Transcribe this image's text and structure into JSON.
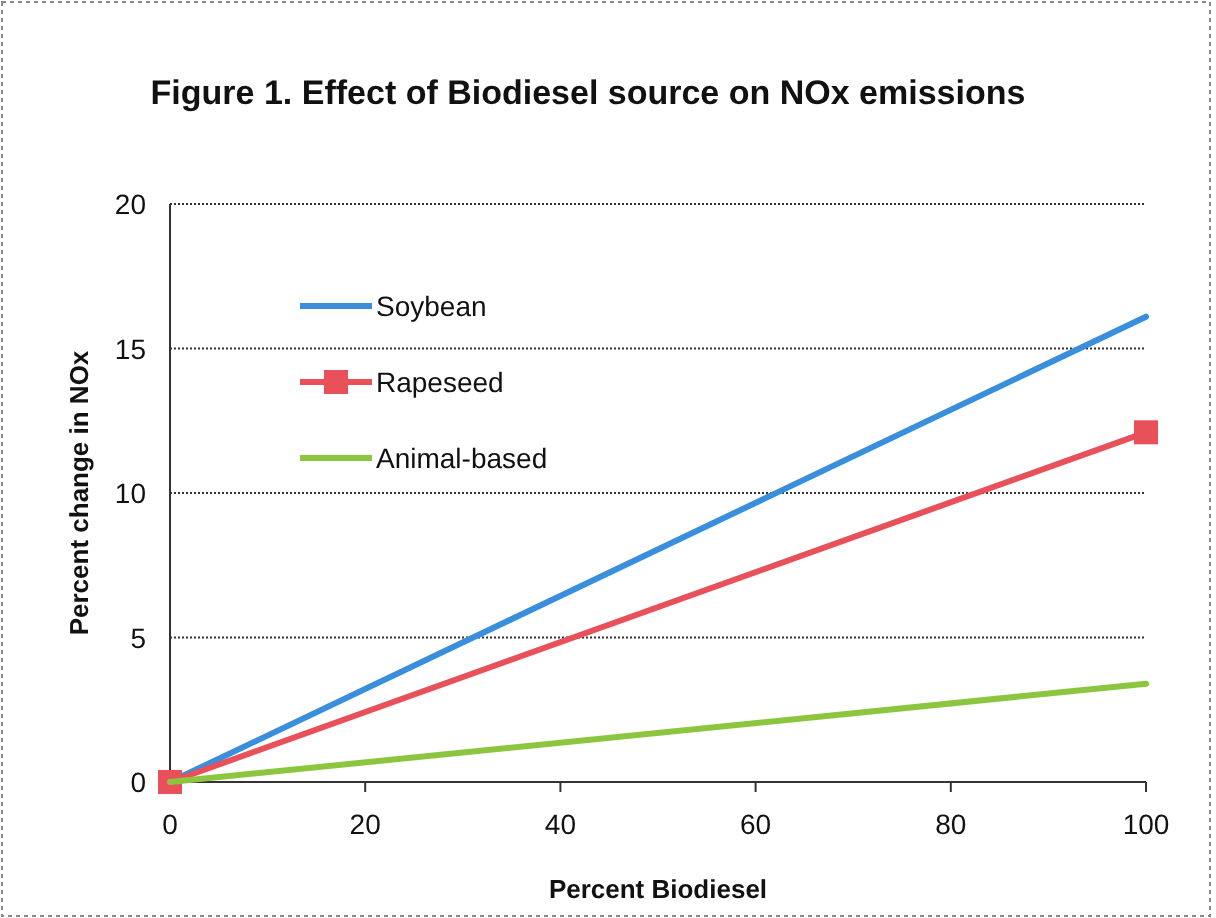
{
  "chart_data": {
    "type": "line",
    "title": "Figure 1. Effect of Biodiesel source on NOx emissions",
    "xlabel": "Percent Biodiesel",
    "ylabel": "Percent change in NOx",
    "x": [
      0,
      100
    ],
    "xlim": [
      0,
      100
    ],
    "ylim": [
      0,
      20
    ],
    "xticks": [
      0,
      20,
      40,
      60,
      80,
      100
    ],
    "yticks": [
      0,
      5,
      10,
      15,
      20
    ],
    "grid": "y",
    "legend": "top left",
    "series": [
      {
        "name": "Soybean",
        "color": "#3a8fdc",
        "values": [
          0,
          16.1
        ],
        "marker": "none"
      },
      {
        "name": "Rapeseed",
        "color": "#e8505a",
        "values": [
          0,
          12.1
        ],
        "marker": "square"
      },
      {
        "name": "Animal-based",
        "color": "#8cc63f",
        "values": [
          0,
          3.4
        ],
        "marker": "none"
      }
    ]
  }
}
